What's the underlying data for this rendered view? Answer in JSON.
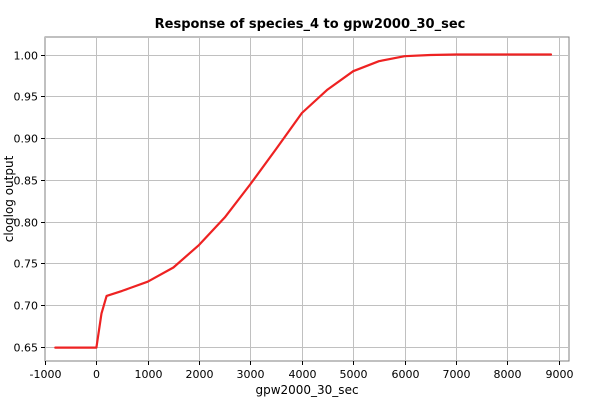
{
  "chart_data": {
    "type": "line",
    "title": "Response of species_4 to gpw2000_30_sec",
    "xlabel": "gpw2000_30_sec",
    "ylabel": "cloglog output",
    "xlim": [
      -1000,
      9200
    ],
    "ylim": [
      0.633,
      1.021
    ],
    "xticks": [
      -1000,
      0,
      1000,
      2000,
      3000,
      4000,
      5000,
      6000,
      7000,
      8000,
      9000
    ],
    "yticks": [
      0.65,
      0.7,
      0.75,
      0.8,
      0.85,
      0.9,
      0.95,
      1.0
    ],
    "xtick_labels": [
      "-1000",
      "0",
      "1000",
      "2000",
      "3000",
      "4000",
      "5000",
      "6000",
      "7000",
      "8000",
      "9000"
    ],
    "ytick_labels": [
      "0.65",
      "0.70",
      "0.75",
      "0.80",
      "0.85",
      "0.90",
      "0.95",
      "1.00"
    ],
    "grid": true,
    "series": [
      {
        "color": "#ee2222",
        "x": [
          -800,
          0,
          100,
          200,
          500,
          1000,
          1500,
          2000,
          2500,
          3000,
          3500,
          4000,
          4500,
          5000,
          5500,
          6000,
          6500,
          7000,
          8000,
          8850
        ],
        "y": [
          0.649,
          0.649,
          0.69,
          0.711,
          0.717,
          0.728,
          0.745,
          0.772,
          0.805,
          0.845,
          0.887,
          0.93,
          0.958,
          0.98,
          0.992,
          0.998,
          0.9995,
          1.0,
          1.0,
          1.0
        ]
      }
    ]
  }
}
